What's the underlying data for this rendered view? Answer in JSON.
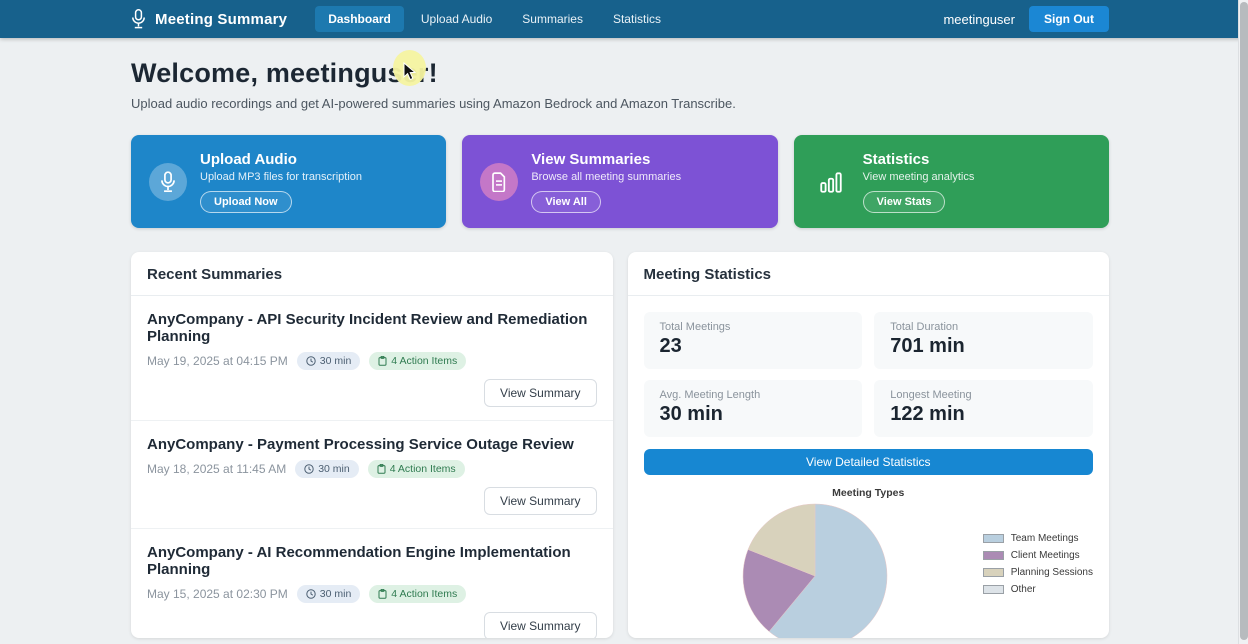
{
  "navbar": {
    "brand": "Meeting Summary",
    "items": [
      {
        "label": "Dashboard",
        "active": true
      },
      {
        "label": "Upload Audio",
        "active": false
      },
      {
        "label": "Summaries",
        "active": false
      },
      {
        "label": "Statistics",
        "active": false
      }
    ],
    "username": "meetinguser",
    "sign_out_label": "Sign Out"
  },
  "welcome": {
    "title": "Welcome, meetinguser!",
    "subtitle": "Upload audio recordings and get AI-powered summaries using Amazon Bedrock and Amazon Transcribe."
  },
  "action_cards": [
    {
      "title": "Upload Audio",
      "description": "Upload MP3 files for transcription",
      "button": "Upload Now",
      "color": "#1e86c9",
      "icon": "microphone-icon"
    },
    {
      "title": "View Summaries",
      "description": "Browse all meeting summaries",
      "button": "View All",
      "color": "#7d52d5",
      "icon": "document-icon"
    },
    {
      "title": "Statistics",
      "description": "View meeting analytics",
      "button": "View Stats",
      "color": "#2f9e58",
      "icon": "bar-chart-icon"
    }
  ],
  "recent_summaries": {
    "title": "Recent Summaries",
    "items": [
      {
        "title": "AnyCompany - API Security Incident Review and Remediation Planning",
        "date": "May 19, 2025 at 04:15 PM",
        "duration": "30 min",
        "action_items": "4 Action Items",
        "button": "View Summary"
      },
      {
        "title": "AnyCompany - Payment Processing Service Outage Review",
        "date": "May 18, 2025 at 11:45 AM",
        "duration": "30 min",
        "action_items": "4 Action Items",
        "button": "View Summary"
      },
      {
        "title": "AnyCompany - AI Recommendation Engine Implementation Planning",
        "date": "May 15, 2025 at 02:30 PM",
        "duration": "30 min",
        "action_items": "4 Action Items",
        "button": "View Summary"
      }
    ]
  },
  "statistics": {
    "title": "Meeting Statistics",
    "tiles": [
      {
        "label": "Total Meetings",
        "value": "23"
      },
      {
        "label": "Total Duration",
        "value": "701 min"
      },
      {
        "label": "Avg. Meeting Length",
        "value": "30 min"
      },
      {
        "label": "Longest Meeting",
        "value": "122 min"
      }
    ],
    "button": "View Detailed Statistics"
  },
  "chart_data": {
    "type": "pie",
    "title": "Meeting Types",
    "labels": [
      "Team Meetings",
      "Client Meetings",
      "Planning Sessions",
      "Other"
    ],
    "values": [
      61,
      20,
      19,
      0
    ],
    "unit": "percent",
    "colors": [
      "#b9cfdf",
      "#ab8bb4",
      "#d8d2bc",
      "#dde3e8"
    ],
    "legend_position": "right",
    "start_angle_deg": 0,
    "direction": "clockwise"
  }
}
